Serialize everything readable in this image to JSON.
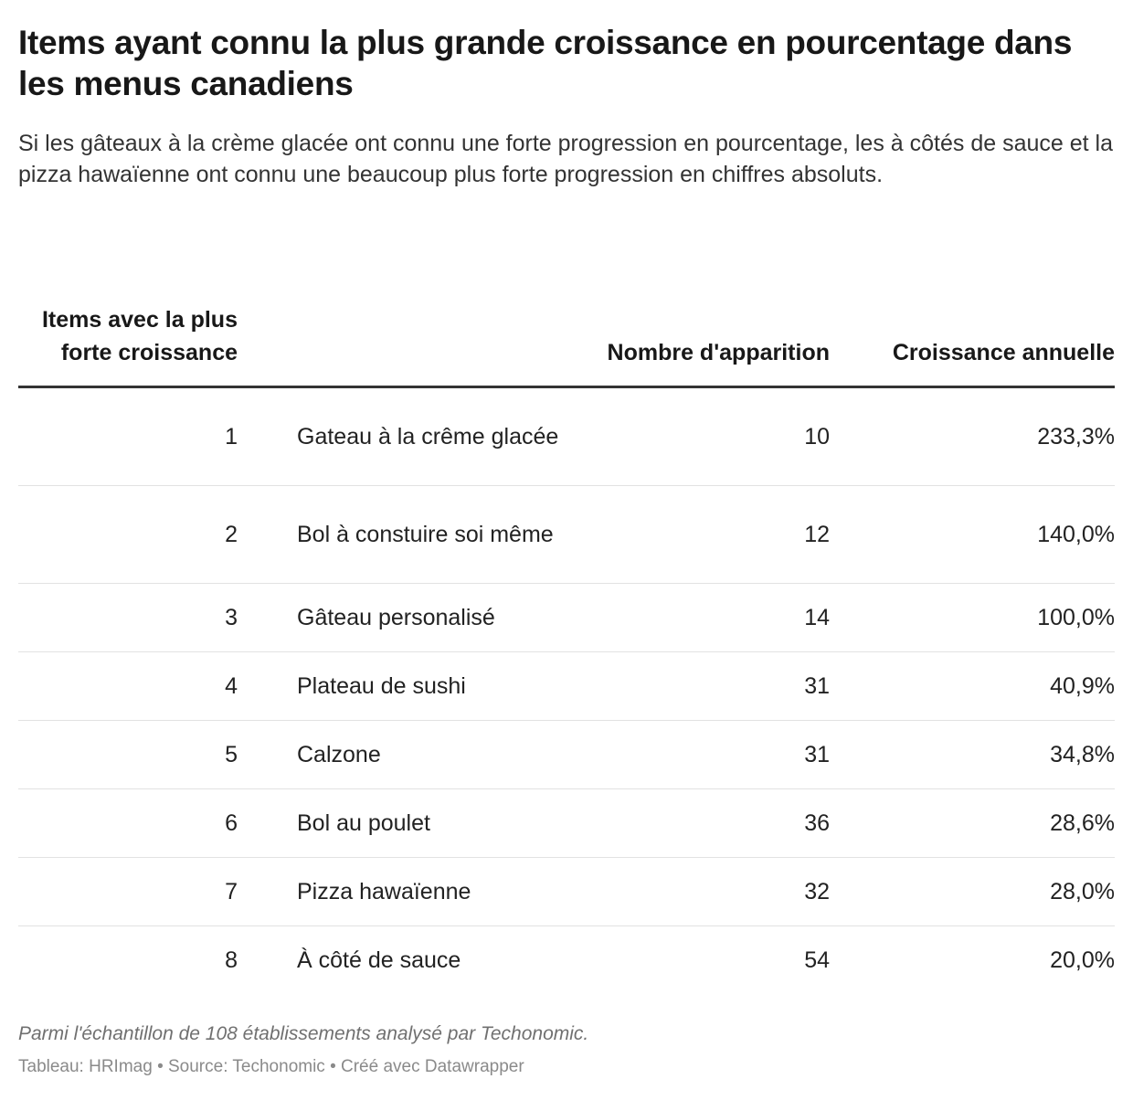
{
  "title": "Items ayant connu la plus grande croissance en pourcentage dans les menus canadiens",
  "subtitle": "Si les gâteaux à la crème glacée ont connu une forte progression en pourcentage, les à côtés de sauce et la pizza hawaïenne ont connu une beaucoup plus forte progression en chiffres absoluts.",
  "chart_data": {
    "type": "table",
    "columns": [
      "Items avec la plus forte croissance",
      "",
      "Nombre d'apparition",
      "Croissance annuelle"
    ],
    "rows": [
      {
        "rank": "1",
        "item": "Gateau à la crême glacée",
        "count": "10",
        "growth": "233,3%"
      },
      {
        "rank": "2",
        "item": "Bol à constuire soi même",
        "count": "12",
        "growth": "140,0%"
      },
      {
        "rank": "3",
        "item": "Gâteau personalisé",
        "count": "14",
        "growth": "100,0%"
      },
      {
        "rank": "4",
        "item": "Plateau de sushi",
        "count": "31",
        "growth": "40,9%"
      },
      {
        "rank": "5",
        "item": "Calzone",
        "count": "31",
        "growth": "34,8%"
      },
      {
        "rank": "6",
        "item": "Bol au poulet",
        "count": "36",
        "growth": "28,6%"
      },
      {
        "rank": "7",
        "item": "Pizza hawaïenne",
        "count": "32",
        "growth": "28,0%"
      },
      {
        "rank": "8",
        "item": "À côté de sauce",
        "count": "54",
        "growth": "20,0%"
      }
    ]
  },
  "note": "Parmi l'échantillon de 108 établissements analysé par Techonomic.",
  "credits": "Tableau: HRImag • Source: Techonomic • Créé avec Datawrapper",
  "colors": {
    "text": "#181818",
    "rule": "#333333",
    "row_divider": "#e2e2e2",
    "muted": "#8a8a8a"
  }
}
